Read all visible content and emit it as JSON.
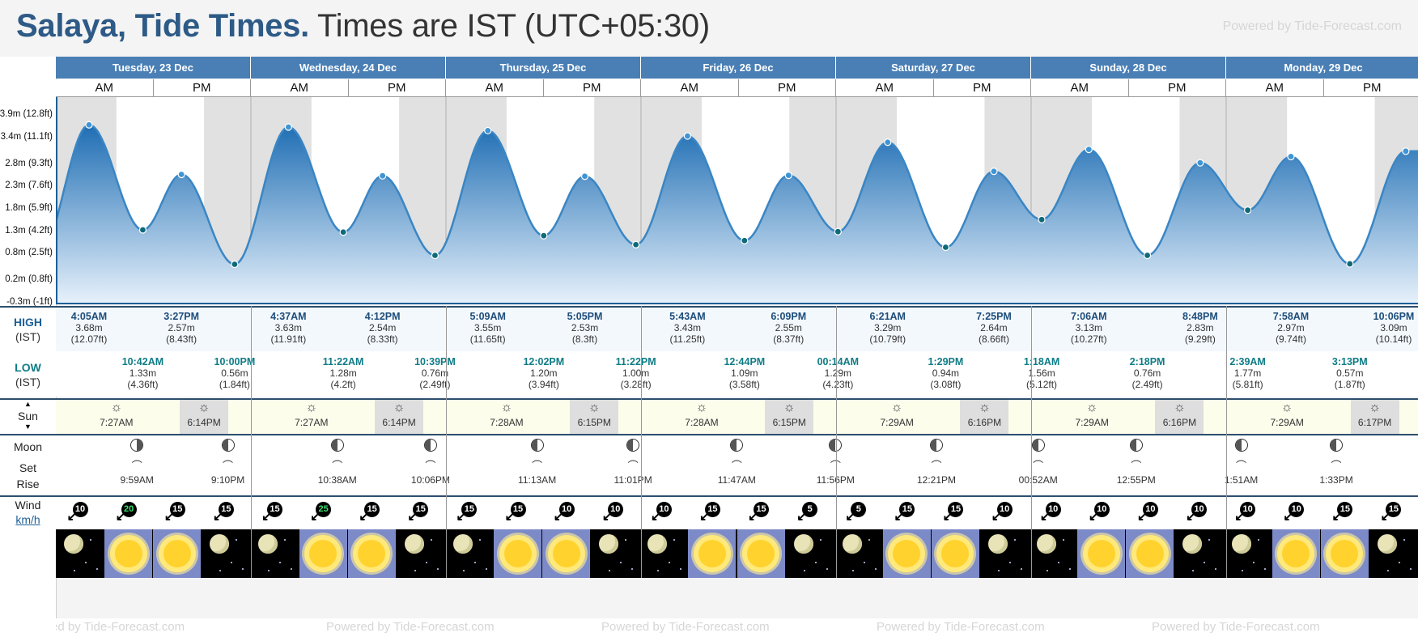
{
  "title": {
    "main": "Salaya, Tide Times.",
    "sub": "Times are IST (UTC+05:30)"
  },
  "powered_by": "Powered by Tide-Forecast.com",
  "powered_by_bottom": "ed by Tide-Forecast.com",
  "chart_data": {
    "type": "area",
    "title": "Salaya, Tide Times.",
    "timezone": "IST (UTC+05:30)",
    "y_unit": "m",
    "y_ticks": [
      "-0.3m (-1ft)",
      "0.2m (0.8ft)",
      "0.8m (2.5ft)",
      "1.3m (4.2ft)",
      "1.8m (5.9ft)",
      "2.3m (7.6ft)",
      "2.8m (9.3ft)",
      "3.4m (11.1ft)",
      "3.9m (12.8ft)"
    ],
    "y_tick_values": [
      -0.3,
      0.2,
      0.8,
      1.3,
      1.8,
      2.3,
      2.8,
      3.4,
      3.9
    ],
    "ylim": [
      -0.3,
      4.3
    ],
    "x_range_hours": [
      0,
      187
    ],
    "series": [
      {
        "values": [
          {
            "day": 0,
            "time": "4:05AM",
            "h": 3.68,
            "type": "high"
          },
          {
            "day": 0,
            "time": "10:42AM",
            "h": 1.33,
            "type": "low"
          },
          {
            "day": 0,
            "time": "3:27PM",
            "h": 2.57,
            "type": "high"
          },
          {
            "day": 0,
            "time": "10:00PM",
            "h": 0.56,
            "type": "low"
          },
          {
            "day": 1,
            "time": "4:37AM",
            "h": 3.63,
            "type": "high"
          },
          {
            "day": 1,
            "time": "11:22AM",
            "h": 1.28,
            "type": "low"
          },
          {
            "day": 1,
            "time": "4:12PM",
            "h": 2.54,
            "type": "high"
          },
          {
            "day": 1,
            "time": "10:39PM",
            "h": 0.76,
            "type": "low"
          },
          {
            "day": 2,
            "time": "5:09AM",
            "h": 3.55,
            "type": "high"
          },
          {
            "day": 2,
            "time": "12:02PM",
            "h": 1.2,
            "type": "low"
          },
          {
            "day": 2,
            "time": "5:05PM",
            "h": 2.53,
            "type": "high"
          },
          {
            "day": 2,
            "time": "11:22PM",
            "h": 1.0,
            "type": "low"
          },
          {
            "day": 3,
            "time": "5:43AM",
            "h": 3.43,
            "type": "high"
          },
          {
            "day": 3,
            "time": "12:44PM",
            "h": 1.09,
            "type": "low"
          },
          {
            "day": 3,
            "time": "6:09PM",
            "h": 2.55,
            "type": "high"
          },
          {
            "day": 4,
            "time": "00:14AM",
            "h": 1.29,
            "type": "low"
          },
          {
            "day": 4,
            "time": "6:21AM",
            "h": 3.29,
            "type": "high"
          },
          {
            "day": 4,
            "time": "1:29PM",
            "h": 0.94,
            "type": "low"
          },
          {
            "day": 4,
            "time": "7:25PM",
            "h": 2.64,
            "type": "high"
          },
          {
            "day": 5,
            "time": "1:18AM",
            "h": 1.56,
            "type": "low"
          },
          {
            "day": 5,
            "time": "7:06AM",
            "h": 3.13,
            "type": "high"
          },
          {
            "day": 5,
            "time": "2:18PM",
            "h": 0.76,
            "type": "low"
          },
          {
            "day": 5,
            "time": "8:48PM",
            "h": 2.83,
            "type": "high"
          },
          {
            "day": 6,
            "time": "2:39AM",
            "h": 1.77,
            "type": "low"
          },
          {
            "day": 6,
            "time": "7:58AM",
            "h": 2.97,
            "type": "high"
          },
          {
            "day": 6,
            "time": "3:13PM",
            "h": 0.57,
            "type": "low"
          },
          {
            "day": 6,
            "time": "10:06PM",
            "h": 3.09,
            "type": "high"
          }
        ]
      }
    ],
    "colors": {
      "fill_top": "#1f6eb4",
      "fill_bottom": "#e8f2fb",
      "line": "#3a86c4",
      "night": "#e1e1e1"
    }
  },
  "days": [
    {
      "label": "Tuesday, 23 Dec",
      "am": "AM",
      "pm": "PM"
    },
    {
      "label": "Wednesday, 24 Dec",
      "am": "AM",
      "pm": "PM"
    },
    {
      "label": "Thursday, 25 Dec",
      "am": "AM",
      "pm": "PM"
    },
    {
      "label": "Friday, 26 Dec",
      "am": "AM",
      "pm": "PM"
    },
    {
      "label": "Saturday, 27 Dec",
      "am": "AM",
      "pm": "PM"
    },
    {
      "label": "Sunday, 28 Dec",
      "am": "AM",
      "pm": "PM"
    },
    {
      "label": "Monday, 29 Dec",
      "am": "AM",
      "pm": "PM"
    }
  ],
  "row_labels": {
    "high": "HIGH",
    "high_tz": "(IST)",
    "low": "LOW",
    "low_tz": "(IST)",
    "sun": "Sun",
    "moon": "Moon",
    "set": "Set",
    "rise": "Rise",
    "wind": "Wind",
    "wind_unit": "km/h"
  },
  "highs": [
    {
      "time": "4:05AM",
      "m": "3.68m",
      "ft": "(12.07ft)"
    },
    {
      "time": "3:27PM",
      "m": "2.57m",
      "ft": "(8.43ft)"
    },
    {
      "time": "4:37AM",
      "m": "3.63m",
      "ft": "(11.91ft)"
    },
    {
      "time": "4:12PM",
      "m": "2.54m",
      "ft": "(8.33ft)"
    },
    {
      "time": "5:09AM",
      "m": "3.55m",
      "ft": "(11.65ft)"
    },
    {
      "time": "5:05PM",
      "m": "2.53m",
      "ft": "(8.3ft)"
    },
    {
      "time": "5:43AM",
      "m": "3.43m",
      "ft": "(11.25ft)"
    },
    {
      "time": "6:09PM",
      "m": "2.55m",
      "ft": "(8.37ft)"
    },
    {
      "time": "6:21AM",
      "m": "3.29m",
      "ft": "(10.79ft)"
    },
    {
      "time": "7:25PM",
      "m": "2.64m",
      "ft": "(8.66ft)"
    },
    {
      "time": "7:06AM",
      "m": "3.13m",
      "ft": "(10.27ft)"
    },
    {
      "time": "8:48PM",
      "m": "2.83m",
      "ft": "(9.29ft)"
    },
    {
      "time": "7:58AM",
      "m": "2.97m",
      "ft": "(9.74ft)"
    },
    {
      "time": "10:06PM",
      "m": "3.09m",
      "ft": "(10.14ft)"
    }
  ],
  "lows": [
    {
      "time": "10:42AM",
      "m": "1.33m",
      "ft": "(4.36ft)"
    },
    {
      "time": "10:00PM",
      "m": "0.56m",
      "ft": "(1.84ft)"
    },
    {
      "time": "11:22AM",
      "m": "1.28m",
      "ft": "(4.2ft)"
    },
    {
      "time": "10:39PM",
      "m": "0.76m",
      "ft": "(2.49ft)"
    },
    {
      "time": "12:02PM",
      "m": "1.20m",
      "ft": "(3.94ft)"
    },
    {
      "time": "11:22PM",
      "m": "1.00m",
      "ft": "(3.28ft)"
    },
    {
      "time": "12:44PM",
      "m": "1.09m",
      "ft": "(3.58ft)"
    },
    {
      "time": "00:14AM",
      "m": "1.29m",
      "ft": "(4.23ft)"
    },
    {
      "time": "1:29PM",
      "m": "0.94m",
      "ft": "(3.08ft)"
    },
    {
      "time": "1:18AM",
      "m": "1.56m",
      "ft": "(5.12ft)"
    },
    {
      "time": "2:18PM",
      "m": "0.76m",
      "ft": "(2.49ft)"
    },
    {
      "time": "2:39AM",
      "m": "1.77m",
      "ft": "(5.81ft)"
    },
    {
      "time": "3:13PM",
      "m": "0.57m",
      "ft": "(1.87ft)"
    }
  ],
  "sunrise": [
    "7:27AM",
    "7:27AM",
    "7:28AM",
    "7:28AM",
    "7:29AM",
    "7:29AM",
    "7:29AM"
  ],
  "sunset": [
    "6:14PM",
    "6:14PM",
    "6:15PM",
    "6:15PM",
    "6:16PM",
    "6:16PM",
    "6:17PM"
  ],
  "moon_events": [
    {
      "time": "9:59AM",
      "kind": "rise",
      "phase": "waning"
    },
    {
      "time": "9:10PM",
      "kind": "set",
      "phase": "waxing"
    },
    {
      "time": "10:38AM",
      "kind": "rise",
      "phase": "waxing"
    },
    {
      "time": "10:06PM",
      "kind": "set",
      "phase": "waxing"
    },
    {
      "time": "11:13AM",
      "kind": "rise",
      "phase": "waxing"
    },
    {
      "time": "11:01PM",
      "kind": "set",
      "phase": "waxing"
    },
    {
      "time": "11:47AM",
      "kind": "rise",
      "phase": "waxing"
    },
    {
      "time": "11:56PM",
      "kind": "set",
      "phase": "waxing"
    },
    {
      "time": "12:21PM",
      "kind": "rise",
      "phase": "waxing"
    },
    {
      "time": "00:52AM",
      "kind": "set",
      "phase": "waxing"
    },
    {
      "time": "12:55PM",
      "kind": "rise",
      "phase": "waxing"
    },
    {
      "time": "1:51AM",
      "kind": "set",
      "phase": "waxing"
    },
    {
      "time": "1:33PM",
      "kind": "rise",
      "phase": "waxing"
    }
  ],
  "wind": [
    10,
    20,
    15,
    15,
    15,
    25,
    15,
    15,
    15,
    15,
    10,
    10,
    10,
    15,
    15,
    5,
    5,
    15,
    15,
    10,
    10,
    10,
    10,
    10,
    10,
    10,
    15,
    15
  ],
  "wind_highlight": [
    20,
    25
  ],
  "weather": [
    "night",
    "day",
    "day",
    "night",
    "night",
    "day",
    "day",
    "night",
    "night",
    "day",
    "day",
    "night",
    "night",
    "day",
    "day",
    "night",
    "night",
    "day",
    "day",
    "night",
    "night",
    "day",
    "day",
    "night",
    "night",
    "day",
    "day",
    "night"
  ]
}
